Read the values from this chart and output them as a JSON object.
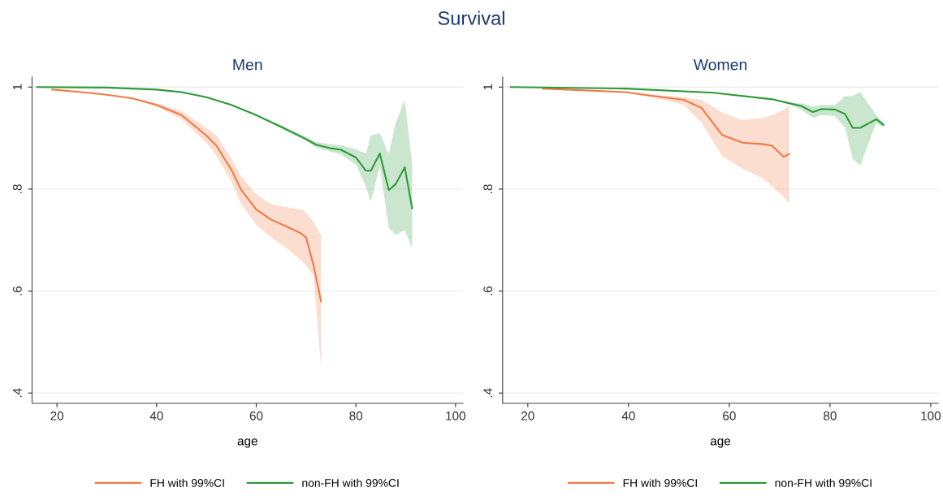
{
  "chart_data": [
    {
      "type": "line",
      "title": "Men",
      "xlabel": "age",
      "annotations": [
        "Survival"
      ],
      "xlim": [
        15,
        101.5
      ],
      "xticks": [
        20,
        40,
        60,
        80,
        100
      ],
      "ylim": [
        0.38,
        1.02
      ],
      "yticks": [
        {
          "value": 0.4,
          "label": ".4"
        },
        {
          "value": 0.6,
          "label": ".6"
        },
        {
          "value": 0.8,
          "label": ".8"
        },
        {
          "value": 1,
          "label": "1"
        }
      ],
      "grid": "y",
      "legend": "bottom",
      "series": [
        {
          "name": "FH with 99%CI",
          "color": "#f07a45",
          "x": [
            19,
            25,
            30,
            35,
            40,
            45,
            50,
            52,
            55,
            57,
            60,
            63,
            66,
            69,
            70,
            71.5,
            73
          ],
          "values": [
            0.995,
            0.99,
            0.985,
            0.978,
            0.965,
            0.945,
            0.905,
            0.885,
            0.838,
            0.798,
            0.76,
            0.74,
            0.727,
            0.713,
            0.705,
            0.65,
            0.58
          ],
          "lower": [
            0.995,
            0.99,
            0.985,
            0.977,
            0.962,
            0.937,
            0.89,
            0.865,
            0.815,
            0.77,
            0.73,
            0.705,
            0.685,
            0.66,
            0.65,
            0.63,
            0.45
          ],
          "upper": [
            0.995,
            0.99,
            0.986,
            0.979,
            0.968,
            0.953,
            0.92,
            0.905,
            0.86,
            0.825,
            0.79,
            0.77,
            0.765,
            0.76,
            0.755,
            0.735,
            0.71
          ]
        },
        {
          "name": "non-FH with 99%CI",
          "color": "#2e9a3a",
          "x": [
            16,
            30,
            40,
            45,
            50,
            55,
            60,
            65,
            70,
            72,
            75,
            77,
            80,
            82,
            83,
            84.8,
            86.6,
            88,
            89.8,
            91.3
          ],
          "values": [
            1,
            0.999,
            0.995,
            0.99,
            0.98,
            0.965,
            0.945,
            0.922,
            0.898,
            0.887,
            0.88,
            0.877,
            0.862,
            0.836,
            0.836,
            0.87,
            0.798,
            0.81,
            0.843,
            0.762
          ],
          "lower": [
            1,
            0.999,
            0.995,
            0.99,
            0.98,
            0.964,
            0.943,
            0.919,
            0.894,
            0.882,
            0.873,
            0.868,
            0.848,
            0.805,
            0.775,
            0.845,
            0.724,
            0.71,
            0.72,
            0.684
          ],
          "upper": [
            1,
            0.999,
            0.995,
            0.99,
            0.98,
            0.966,
            0.947,
            0.925,
            0.902,
            0.892,
            0.888,
            0.886,
            0.878,
            0.87,
            0.905,
            0.91,
            0.868,
            0.93,
            0.975,
            0.85
          ]
        }
      ]
    },
    {
      "type": "line",
      "title": "Women",
      "xlabel": "age",
      "xlim": [
        15,
        101.5
      ],
      "xticks": [
        20,
        40,
        60,
        80,
        100
      ],
      "ylim": [
        0.38,
        1.02
      ],
      "yticks": [
        {
          "value": 0.4,
          "label": ".4"
        },
        {
          "value": 0.6,
          "label": ".6"
        },
        {
          "value": 0.8,
          "label": ".8"
        },
        {
          "value": 1,
          "label": "1"
        }
      ],
      "grid": "y",
      "legend": "bottom",
      "series": [
        {
          "name": "FH with 99%CI",
          "color": "#f07a45",
          "x": [
            23,
            39.4,
            45.2,
            51,
            54.5,
            58.6,
            62.6,
            66.8,
            68.5,
            70.8,
            71.9
          ],
          "values": [
            0.997,
            0.99,
            0.982,
            0.975,
            0.959,
            0.906,
            0.891,
            0.888,
            0.885,
            0.863,
            0.869
          ],
          "lower": [
            0.997,
            0.989,
            0.979,
            0.965,
            0.93,
            0.865,
            0.84,
            0.82,
            0.805,
            0.785,
            0.771
          ],
          "upper": [
            0.997,
            0.991,
            0.985,
            0.98,
            0.975,
            0.95,
            0.935,
            0.94,
            0.945,
            0.955,
            0.964
          ]
        },
        {
          "name": "non-FH with 99%CI",
          "color": "#2e9a3a",
          "x": [
            16.6,
            39.4,
            56.9,
            68.6,
            72,
            74.3,
            76.6,
            78.4,
            81,
            83,
            84.5,
            86,
            89.2,
            90.6
          ],
          "values": [
            1,
            0.997,
            0.989,
            0.976,
            0.968,
            0.963,
            0.951,
            0.957,
            0.956,
            0.947,
            0.92,
            0.92,
            0.937,
            0.926
          ],
          "lower": [
            1,
            0.997,
            0.989,
            0.976,
            0.967,
            0.955,
            0.94,
            0.945,
            0.943,
            0.92,
            0.86,
            0.846,
            0.93,
            0.92
          ],
          "upper": [
            1,
            0.997,
            0.989,
            0.976,
            0.969,
            0.968,
            0.962,
            0.965,
            0.965,
            0.982,
            0.983,
            0.99,
            0.945,
            0.93
          ]
        }
      ]
    }
  ]
}
